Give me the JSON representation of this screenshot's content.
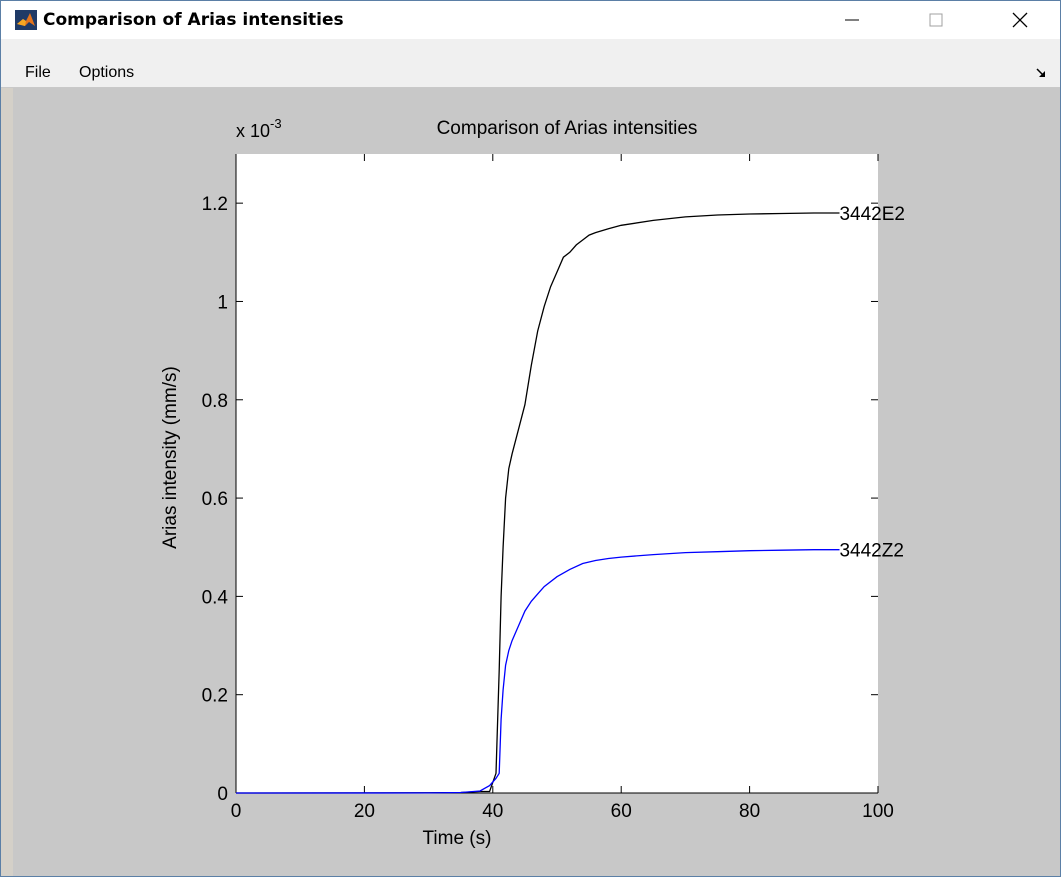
{
  "window": {
    "title": "Comparison of Arias intensities",
    "icon": "matlab-icon",
    "controls": [
      "minimize-icon",
      "maximize-icon",
      "close-icon"
    ]
  },
  "menu": {
    "items": [
      {
        "label": "File"
      },
      {
        "label": "Options"
      }
    ],
    "dock_icon": "dock-arrow-icon"
  },
  "chart_data": {
    "type": "line",
    "title": "Comparison of Arias intensities",
    "xlabel": "Time (s)",
    "ylabel": "Arias intensity (mm/s)",
    "y_multiplier": "x 10",
    "y_multiplier_exponent": "-3",
    "xlim": [
      0,
      100
    ],
    "ylim": [
      0,
      1.3
    ],
    "xticks": [
      0,
      20,
      40,
      60,
      80,
      100
    ],
    "xtick_labels": [
      "0",
      "20",
      "40",
      "60",
      "80",
      "100"
    ],
    "yticks": [
      0,
      0.2,
      0.4,
      0.6,
      0.8,
      1,
      1.2
    ],
    "ytick_labels": [
      "0",
      "0.2",
      "0.4",
      "0.6",
      "0.8",
      "1",
      "1.2"
    ],
    "grid": false,
    "series": [
      {
        "name": "3442E2",
        "color": "#000000",
        "x": [
          0,
          30,
          35,
          38,
          39.5,
          40.5,
          41,
          41.3,
          41.6,
          42,
          42.5,
          43,
          44,
          45,
          46,
          47,
          48,
          49,
          50,
          51,
          52,
          53,
          54,
          55,
          56,
          58,
          60,
          65,
          70,
          75,
          80,
          85,
          90,
          94
        ],
        "y": [
          0,
          0.0004,
          0.001,
          0.003,
          0.003,
          0.04,
          0.25,
          0.4,
          0.5,
          0.6,
          0.66,
          0.69,
          0.74,
          0.79,
          0.87,
          0.94,
          0.99,
          1.03,
          1.06,
          1.09,
          1.1,
          1.115,
          1.125,
          1.135,
          1.14,
          1.148,
          1.155,
          1.165,
          1.172,
          1.176,
          1.178,
          1.179,
          1.18,
          1.18
        ],
        "label": "3442E2"
      },
      {
        "name": "3442Z2",
        "color": "#0000ff",
        "x": [
          0,
          30,
          35,
          38,
          39.5,
          40.5,
          41,
          41.3,
          41.6,
          42,
          42.5,
          43,
          44,
          45,
          46,
          47,
          48,
          50,
          52,
          54,
          56,
          58,
          60,
          65,
          70,
          75,
          80,
          85,
          90,
          94
        ],
        "y": [
          0,
          0.0003,
          0.001,
          0.004,
          0.015,
          0.03,
          0.04,
          0.15,
          0.21,
          0.26,
          0.29,
          0.31,
          0.34,
          0.37,
          0.39,
          0.405,
          0.42,
          0.44,
          0.455,
          0.467,
          0.473,
          0.477,
          0.48,
          0.485,
          0.489,
          0.491,
          0.493,
          0.494,
          0.495,
          0.495
        ],
        "label": "3442Z2"
      }
    ]
  }
}
